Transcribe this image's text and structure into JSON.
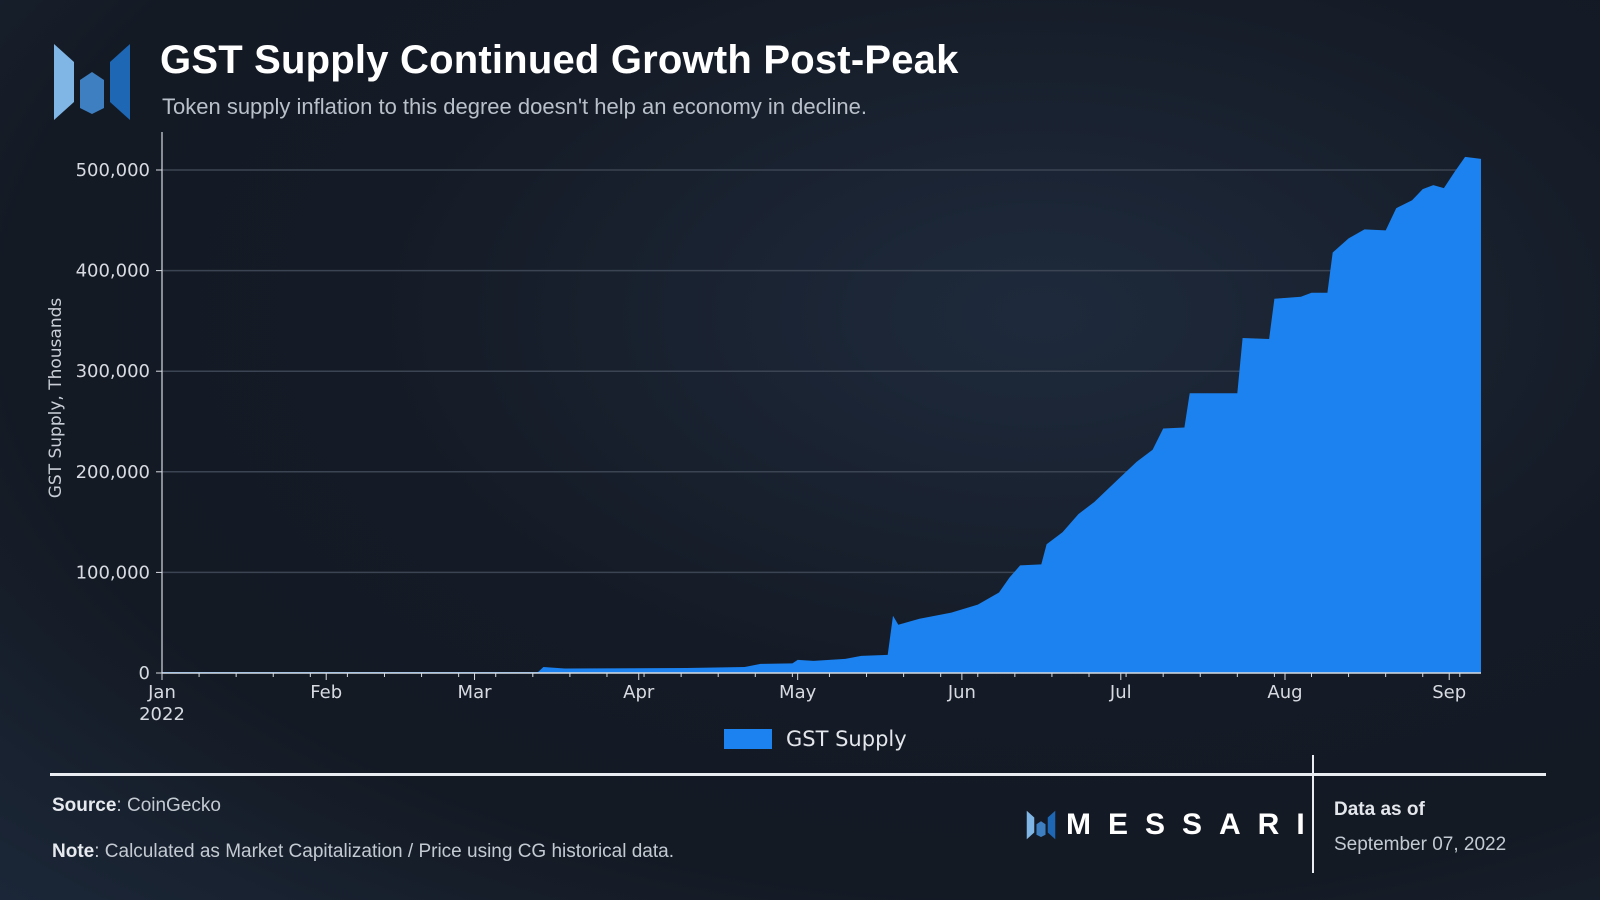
{
  "header": {
    "title": "GST Supply Continued Growth Post-Peak",
    "subtitle": "Token supply inflation to this degree doesn't help an economy in decline."
  },
  "legend": {
    "label": "GST Supply",
    "color": "#1b82f0"
  },
  "footer": {
    "source_label": "Source",
    "source_value": ": CoinGecko",
    "note_label": "Note",
    "note_value": ": Calculated as Market Capitalization / Price using CG historical data.",
    "brand": "MESSARI",
    "data_as_of_label": "Data as of",
    "data_as_of_date": "September 07, 2022"
  },
  "chart_data": {
    "type": "area",
    "title": "GST Supply Continued Growth Post-Peak",
    "xlabel": "",
    "ylabel": "GST Supply, Thousands",
    "ylim": [
      0,
      530000
    ],
    "yticks": [
      0,
      100000,
      200000,
      300000,
      400000,
      500000
    ],
    "ytick_labels": [
      "0",
      "100,000",
      "200,000",
      "300,000",
      "400,000",
      "500,000"
    ],
    "xlim": [
      "2022-01-01",
      "2022-09-07"
    ],
    "xticks": [
      {
        "date": "2022-01-01",
        "label": "Jan",
        "sublabel": "2022"
      },
      {
        "date": "2022-02-01",
        "label": "Feb"
      },
      {
        "date": "2022-03-01",
        "label": "Mar"
      },
      {
        "date": "2022-04-01",
        "label": "Apr"
      },
      {
        "date": "2022-05-01",
        "label": "May"
      },
      {
        "date": "2022-06-01",
        "label": "Jun"
      },
      {
        "date": "2022-07-01",
        "label": "Jul"
      },
      {
        "date": "2022-08-01",
        "label": "Aug"
      },
      {
        "date": "2022-09-01",
        "label": "Sep"
      }
    ],
    "grid": true,
    "legend_position": "bottom-center",
    "series": [
      {
        "name": "GST Supply",
        "color": "#1b82f0",
        "points": [
          [
            "2022-01-01",
            1000
          ],
          [
            "2022-03-13",
            1000
          ],
          [
            "2022-03-14",
            6000
          ],
          [
            "2022-03-18",
            4500
          ],
          [
            "2022-04-10",
            5000
          ],
          [
            "2022-04-21",
            6000
          ],
          [
            "2022-04-24",
            9000
          ],
          [
            "2022-04-30",
            9500
          ],
          [
            "2022-05-01",
            13000
          ],
          [
            "2022-05-04",
            12000
          ],
          [
            "2022-05-10",
            14000
          ],
          [
            "2022-05-13",
            17000
          ],
          [
            "2022-05-18",
            18000
          ],
          [
            "2022-05-19",
            57000
          ],
          [
            "2022-05-20",
            48000
          ],
          [
            "2022-05-24",
            54000
          ],
          [
            "2022-05-30",
            60000
          ],
          [
            "2022-06-04",
            68000
          ],
          [
            "2022-06-08",
            80000
          ],
          [
            "2022-06-10",
            95000
          ],
          [
            "2022-06-12",
            107000
          ],
          [
            "2022-06-16",
            108000
          ],
          [
            "2022-06-17",
            128000
          ],
          [
            "2022-06-20",
            140000
          ],
          [
            "2022-06-23",
            158000
          ],
          [
            "2022-06-26",
            170000
          ],
          [
            "2022-06-28",
            180000
          ],
          [
            "2022-07-01",
            195000
          ],
          [
            "2022-07-04",
            210000
          ],
          [
            "2022-07-07",
            222000
          ],
          [
            "2022-07-09",
            243000
          ],
          [
            "2022-07-13",
            244000
          ],
          [
            "2022-07-14",
            278000
          ],
          [
            "2022-07-23",
            278000
          ],
          [
            "2022-07-24",
            333000
          ],
          [
            "2022-07-29",
            332000
          ],
          [
            "2022-07-30",
            372000
          ],
          [
            "2022-08-04",
            374000
          ],
          [
            "2022-08-06",
            378000
          ],
          [
            "2022-08-09",
            378000
          ],
          [
            "2022-08-10",
            418000
          ],
          [
            "2022-08-13",
            432000
          ],
          [
            "2022-08-16",
            441000
          ],
          [
            "2022-08-20",
            440000
          ],
          [
            "2022-08-22",
            462000
          ],
          [
            "2022-08-25",
            470000
          ],
          [
            "2022-08-27",
            481000
          ],
          [
            "2022-08-29",
            485000
          ],
          [
            "2022-08-31",
            482000
          ],
          [
            "2022-09-02",
            498000
          ],
          [
            "2022-09-04",
            513000
          ],
          [
            "2022-09-07",
            511000
          ]
        ]
      }
    ]
  }
}
